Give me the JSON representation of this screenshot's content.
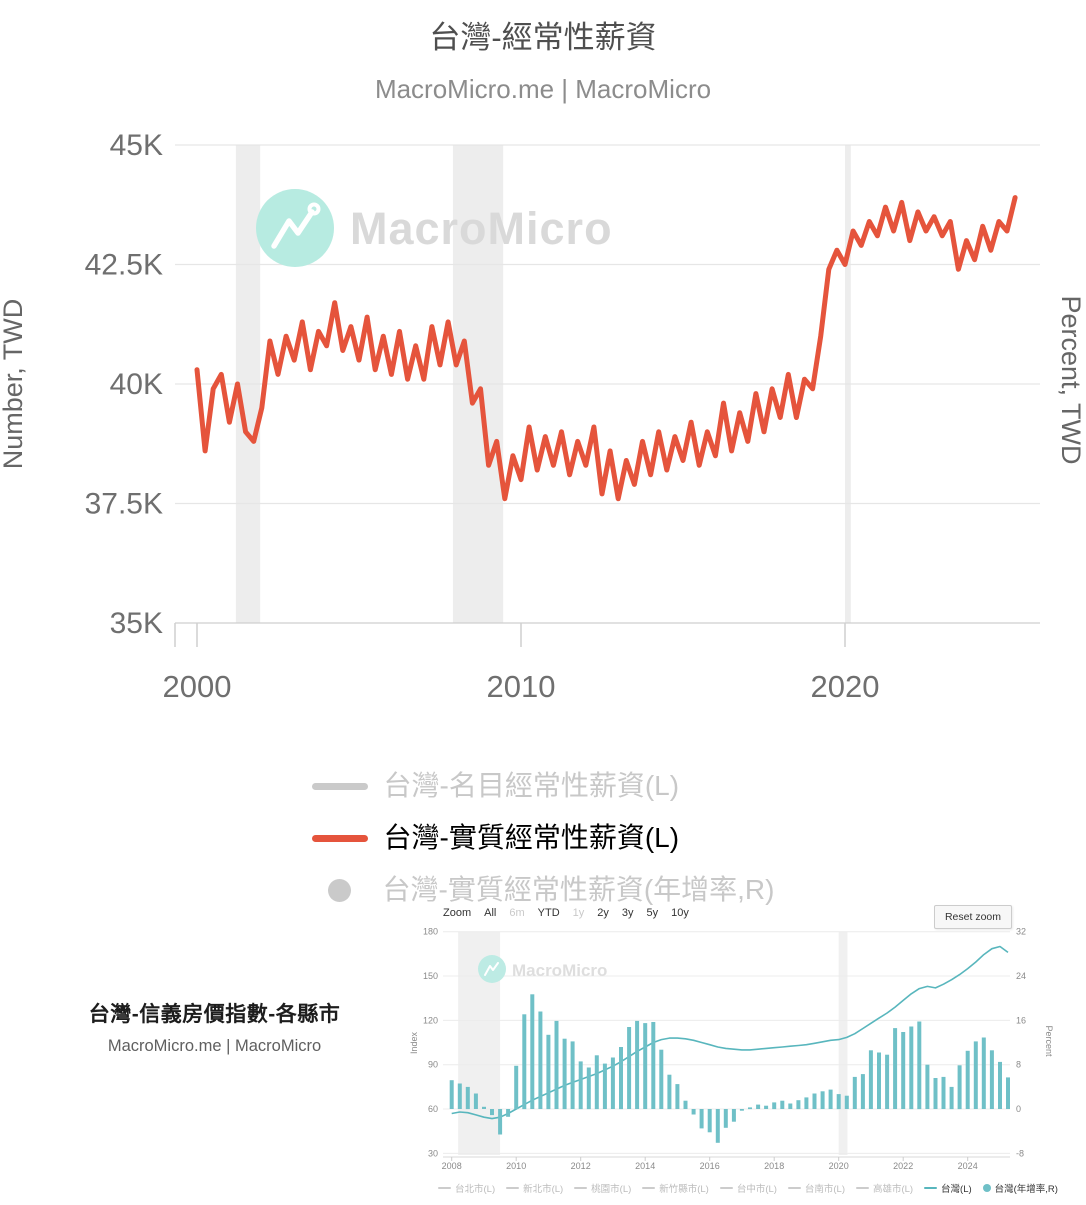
{
  "page": {
    "title": "台灣-經常性薪資",
    "subtitle": "MacroMicro.me | MacroMicro"
  },
  "watermark": {
    "text": "MacroMicro"
  },
  "colors": {
    "accent_red": "#e5543c",
    "teal_bar": "#6fc0c7",
    "teal_line": "#58b6bd",
    "recession_band": "#ededed",
    "gridline": "#e6e6e6",
    "axis_text": "#6f6f6f",
    "disabled_legend": "#cacaca",
    "watermark_mint": "#b7ebe1",
    "watermark_text": "#d9d9d9"
  },
  "main_legend": {
    "items": [
      {
        "label": "台灣-名目經常性薪資(L)",
        "swatch": "line",
        "color": "#cacaca",
        "text_color": "#c8c8c8",
        "active": false
      },
      {
        "label": "台灣-實質經常性薪資(L)",
        "swatch": "line",
        "color": "#e5543c",
        "text_color": "#000000",
        "active": true
      },
      {
        "label": "台灣-實質經常性薪資(年增率,R)",
        "swatch": "circle",
        "color": "#cacaca",
        "text_color": "#c8c8c8",
        "active": false
      }
    ]
  },
  "inset_block": {
    "title": "台灣-信義房價指數-各縣市",
    "subtitle": "MacroMicro.me | MacroMicro",
    "toolbar": {
      "zoom_label": "Zoom",
      "options": [
        {
          "label": "All",
          "enabled": true
        },
        {
          "label": "6m",
          "enabled": false
        },
        {
          "label": "YTD",
          "enabled": true
        },
        {
          "label": "1y",
          "enabled": false
        },
        {
          "label": "2y",
          "enabled": true
        },
        {
          "label": "3y",
          "enabled": true
        },
        {
          "label": "5y",
          "enabled": true
        },
        {
          "label": "10y",
          "enabled": true
        }
      ],
      "reset_button": "Reset zoom"
    },
    "legend": [
      {
        "label": "台北市(L)",
        "swatch": "dash",
        "color": "#cccccc",
        "text_color": "#bcbcbc",
        "active": false
      },
      {
        "label": "新北市(L)",
        "swatch": "dash",
        "color": "#cccccc",
        "text_color": "#bcbcbc",
        "active": false
      },
      {
        "label": "桃園市(L)",
        "swatch": "dash",
        "color": "#cccccc",
        "text_color": "#bcbcbc",
        "active": false
      },
      {
        "label": "新竹縣市(L)",
        "swatch": "dash",
        "color": "#cccccc",
        "text_color": "#bcbcbc",
        "active": false
      },
      {
        "label": "台中市(L)",
        "swatch": "dash",
        "color": "#cccccc",
        "text_color": "#bcbcbc",
        "active": false
      },
      {
        "label": "台南市(L)",
        "swatch": "dash",
        "color": "#cccccc",
        "text_color": "#bcbcbc",
        "active": false
      },
      {
        "label": "高雄市(L)",
        "swatch": "dash",
        "color": "#cccccc",
        "text_color": "#bcbcbc",
        "active": false
      },
      {
        "label": "台灣(L)",
        "swatch": "dash",
        "color": "#58b6bd",
        "text_color": "#333333",
        "active": true
      },
      {
        "label": "台灣(年增率,R)",
        "swatch": "dot",
        "color": "#6fc0c7",
        "text_color": "#333333",
        "active": true
      }
    ]
  },
  "chart_data": [
    {
      "id": "main-salary-chart",
      "type": "line",
      "title": "台灣-經常性薪資",
      "ylabel_left": "Number, TWD",
      "ylabel_right": "Percent, TWD",
      "ylim_left": [
        35,
        45
      ],
      "xlim": [
        1999.3,
        2026.1
      ],
      "grid": true,
      "legend_position": "bottom",
      "y_ticks": [
        {
          "v": 45,
          "label": "45K"
        },
        {
          "v": 42.5,
          "label": "42.5K"
        },
        {
          "v": 40,
          "label": "40K"
        },
        {
          "v": 37.5,
          "label": "37.5K"
        },
        {
          "v": 35,
          "label": "35K"
        }
      ],
      "x_ticks": [
        {
          "v": 2000,
          "label": "2000"
        },
        {
          "v": 2010,
          "label": "2010"
        },
        {
          "v": 2020,
          "label": "2020"
        }
      ],
      "recession_bands": [
        [
          2001.2,
          2001.95
        ],
        [
          2007.9,
          2009.45
        ],
        [
          2020.0,
          2020.18
        ]
      ],
      "series": [
        {
          "name": "台灣-名目經常性薪資(L)",
          "axis": "L",
          "visible": false,
          "color": "#cacaca"
        },
        {
          "name": "台灣-實質經常性薪資(L)",
          "axis": "L",
          "visible": true,
          "color": "#e5543c",
          "unit": "K TWD",
          "start_x": 2000,
          "dx": 0.25,
          "values": [
            40.3,
            38.6,
            39.9,
            40.2,
            39.2,
            40.0,
            39.0,
            38.8,
            39.5,
            40.9,
            40.2,
            41.0,
            40.5,
            41.3,
            40.3,
            41.1,
            40.8,
            41.7,
            40.7,
            41.2,
            40.5,
            41.4,
            40.3,
            41.0,
            40.2,
            41.1,
            40.1,
            40.8,
            40.1,
            41.2,
            40.4,
            41.3,
            40.4,
            40.9,
            39.6,
            39.9,
            38.3,
            38.8,
            37.6,
            38.5,
            38.0,
            39.1,
            38.2,
            38.9,
            38.3,
            39.0,
            38.1,
            38.8,
            38.3,
            39.1,
            37.7,
            38.6,
            37.6,
            38.4,
            37.9,
            38.8,
            38.1,
            39.0,
            38.2,
            38.9,
            38.4,
            39.2,
            38.3,
            39.0,
            38.5,
            39.6,
            38.6,
            39.4,
            38.8,
            39.8,
            39.0,
            39.9,
            39.3,
            40.2,
            39.3,
            40.1,
            39.9,
            41.0,
            42.4,
            42.8,
            42.5,
            43.2,
            42.9,
            43.4,
            43.1,
            43.7,
            43.2,
            43.8,
            43.0,
            43.6,
            43.2,
            43.5,
            43.1,
            43.4,
            42.4,
            43.0,
            42.6,
            43.3,
            42.8,
            43.4,
            43.2,
            43.9
          ]
        },
        {
          "name": "台灣-實質經常性薪資(年增率,R)",
          "axis": "R",
          "visible": false,
          "color": "#cacaca"
        }
      ]
    },
    {
      "id": "inset-housing-chart",
      "type": "line+bar",
      "title": "台灣-信義房價指數-各縣市",
      "ylabel_left": "Index",
      "ylabel_right": "Percent",
      "ylim_left": [
        30,
        185
      ],
      "ylim_right": [
        -8,
        33.3
      ],
      "xlim": [
        2007.73,
        2025.35
      ],
      "grid": true,
      "y_ticks_left": [
        {
          "v": 180,
          "label": "180"
        },
        {
          "v": 150,
          "label": "150"
        },
        {
          "v": 120,
          "label": "120"
        },
        {
          "v": 90,
          "label": "90"
        },
        {
          "v": 60,
          "label": "60"
        },
        {
          "v": 30,
          "label": "30"
        }
      ],
      "y_ticks_right": [
        {
          "v": 32,
          "label": "32"
        },
        {
          "v": 24,
          "label": "24"
        },
        {
          "v": 16,
          "label": "16"
        },
        {
          "v": 8,
          "label": "8"
        },
        {
          "v": 0,
          "label": "0"
        },
        {
          "v": -8,
          "label": "-8"
        }
      ],
      "x_ticks": [
        {
          "v": 2008,
          "label": "2008"
        },
        {
          "v": 2010,
          "label": "2010"
        },
        {
          "v": 2012,
          "label": "2012"
        },
        {
          "v": 2014,
          "label": "2014"
        },
        {
          "v": 2016,
          "label": "2016"
        },
        {
          "v": 2018,
          "label": "2018"
        },
        {
          "v": 2020,
          "label": "2020"
        },
        {
          "v": 2022,
          "label": "2022"
        },
        {
          "v": 2024,
          "label": "2024"
        }
      ],
      "recession_bands": [
        [
          2008.2,
          2009.5
        ],
        [
          2020.0,
          2020.27
        ]
      ],
      "series": [
        {
          "name": "台灣(L)",
          "type": "line",
          "axis": "L",
          "visible": true,
          "color": "#58b6bd",
          "start_x": 2008,
          "dx": 0.25,
          "values": [
            57,
            58,
            57.5,
            56,
            54.5,
            53.5,
            54.5,
            57,
            60,
            63,
            66,
            68.5,
            71,
            73.5,
            76,
            78,
            80,
            82,
            84,
            86.5,
            89,
            92,
            95.5,
            99,
            102,
            105,
            107,
            108,
            108,
            107.5,
            106.5,
            105,
            103.5,
            102,
            101,
            100.5,
            100,
            100,
            100.5,
            101,
            101.5,
            102,
            102.5,
            103,
            103.5,
            104.5,
            105.5,
            106.5,
            107,
            108.5,
            111,
            114.5,
            118,
            121.5,
            125,
            129,
            133.5,
            138,
            141.5,
            143,
            142,
            144.5,
            147.5,
            151,
            155,
            159.5,
            164.5,
            168.5,
            170,
            166
          ]
        },
        {
          "name": "台灣(年增率,R)",
          "type": "bar",
          "axis": "R",
          "visible": true,
          "color": "#6fc0c7",
          "start_x": 2008,
          "dx": 0.25,
          "values": [
            5.2,
            4.6,
            4.0,
            2.8,
            0.4,
            -1.1,
            -4.6,
            -1.4,
            7.8,
            17.1,
            20.7,
            17.6,
            13.4,
            15.9,
            12.7,
            12.2,
            8.6,
            7.5,
            9.7,
            8.2,
            9.3,
            11.2,
            14.8,
            15.9,
            15.5,
            15.7,
            10.7,
            6.2,
            4.5,
            1.5,
            -1.0,
            -3.5,
            -4.2,
            -6.1,
            -3.4,
            -2.3,
            -0.3,
            0.3,
            0.8,
            0.6,
            1.2,
            1.5,
            1.0,
            1.6,
            2.1,
            2.8,
            3.2,
            3.5,
            2.7,
            2.4,
            5.8,
            6.3,
            10.6,
            10.2,
            9.8,
            14.6,
            13.9,
            14.9,
            15.8,
            8.0,
            5.6,
            5.8,
            4.0,
            7.9,
            10.5,
            12.2,
            12.9,
            10.6,
            8.5,
            5.7
          ]
        }
      ]
    }
  ]
}
